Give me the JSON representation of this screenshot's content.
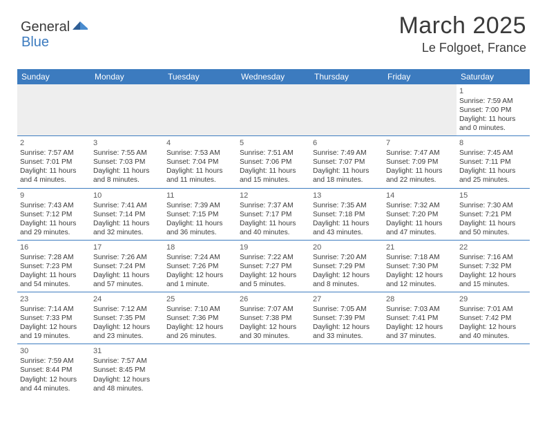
{
  "logo": {
    "general": "General",
    "blue": "Blue"
  },
  "title": "March 2025",
  "location": "Le Folgoet, France",
  "colors": {
    "header_bg": "#3c7bbf",
    "border": "#3c7bbf",
    "blank_bg": "#eeeeee",
    "text": "#3a3a3a",
    "logo_blue": "#3c7bbf"
  },
  "weekdays": [
    "Sunday",
    "Monday",
    "Tuesday",
    "Wednesday",
    "Thursday",
    "Friday",
    "Saturday"
  ],
  "weeks": [
    [
      {
        "blank": true
      },
      {
        "blank": true
      },
      {
        "blank": true
      },
      {
        "blank": true
      },
      {
        "blank": true
      },
      {
        "blank": true
      },
      {
        "num": "1",
        "sunrise": "Sunrise: 7:59 AM",
        "sunset": "Sunset: 7:00 PM",
        "day1": "Daylight: 11 hours",
        "day2": "and 0 minutes."
      }
    ],
    [
      {
        "num": "2",
        "sunrise": "Sunrise: 7:57 AM",
        "sunset": "Sunset: 7:01 PM",
        "day1": "Daylight: 11 hours",
        "day2": "and 4 minutes."
      },
      {
        "num": "3",
        "sunrise": "Sunrise: 7:55 AM",
        "sunset": "Sunset: 7:03 PM",
        "day1": "Daylight: 11 hours",
        "day2": "and 8 minutes."
      },
      {
        "num": "4",
        "sunrise": "Sunrise: 7:53 AM",
        "sunset": "Sunset: 7:04 PM",
        "day1": "Daylight: 11 hours",
        "day2": "and 11 minutes."
      },
      {
        "num": "5",
        "sunrise": "Sunrise: 7:51 AM",
        "sunset": "Sunset: 7:06 PM",
        "day1": "Daylight: 11 hours",
        "day2": "and 15 minutes."
      },
      {
        "num": "6",
        "sunrise": "Sunrise: 7:49 AM",
        "sunset": "Sunset: 7:07 PM",
        "day1": "Daylight: 11 hours",
        "day2": "and 18 minutes."
      },
      {
        "num": "7",
        "sunrise": "Sunrise: 7:47 AM",
        "sunset": "Sunset: 7:09 PM",
        "day1": "Daylight: 11 hours",
        "day2": "and 22 minutes."
      },
      {
        "num": "8",
        "sunrise": "Sunrise: 7:45 AM",
        "sunset": "Sunset: 7:11 PM",
        "day1": "Daylight: 11 hours",
        "day2": "and 25 minutes."
      }
    ],
    [
      {
        "num": "9",
        "sunrise": "Sunrise: 7:43 AM",
        "sunset": "Sunset: 7:12 PM",
        "day1": "Daylight: 11 hours",
        "day2": "and 29 minutes."
      },
      {
        "num": "10",
        "sunrise": "Sunrise: 7:41 AM",
        "sunset": "Sunset: 7:14 PM",
        "day1": "Daylight: 11 hours",
        "day2": "and 32 minutes."
      },
      {
        "num": "11",
        "sunrise": "Sunrise: 7:39 AM",
        "sunset": "Sunset: 7:15 PM",
        "day1": "Daylight: 11 hours",
        "day2": "and 36 minutes."
      },
      {
        "num": "12",
        "sunrise": "Sunrise: 7:37 AM",
        "sunset": "Sunset: 7:17 PM",
        "day1": "Daylight: 11 hours",
        "day2": "and 40 minutes."
      },
      {
        "num": "13",
        "sunrise": "Sunrise: 7:35 AM",
        "sunset": "Sunset: 7:18 PM",
        "day1": "Daylight: 11 hours",
        "day2": "and 43 minutes."
      },
      {
        "num": "14",
        "sunrise": "Sunrise: 7:32 AM",
        "sunset": "Sunset: 7:20 PM",
        "day1": "Daylight: 11 hours",
        "day2": "and 47 minutes."
      },
      {
        "num": "15",
        "sunrise": "Sunrise: 7:30 AM",
        "sunset": "Sunset: 7:21 PM",
        "day1": "Daylight: 11 hours",
        "day2": "and 50 minutes."
      }
    ],
    [
      {
        "num": "16",
        "sunrise": "Sunrise: 7:28 AM",
        "sunset": "Sunset: 7:23 PM",
        "day1": "Daylight: 11 hours",
        "day2": "and 54 minutes."
      },
      {
        "num": "17",
        "sunrise": "Sunrise: 7:26 AM",
        "sunset": "Sunset: 7:24 PM",
        "day1": "Daylight: 11 hours",
        "day2": "and 57 minutes."
      },
      {
        "num": "18",
        "sunrise": "Sunrise: 7:24 AM",
        "sunset": "Sunset: 7:26 PM",
        "day1": "Daylight: 12 hours",
        "day2": "and 1 minute."
      },
      {
        "num": "19",
        "sunrise": "Sunrise: 7:22 AM",
        "sunset": "Sunset: 7:27 PM",
        "day1": "Daylight: 12 hours",
        "day2": "and 5 minutes."
      },
      {
        "num": "20",
        "sunrise": "Sunrise: 7:20 AM",
        "sunset": "Sunset: 7:29 PM",
        "day1": "Daylight: 12 hours",
        "day2": "and 8 minutes."
      },
      {
        "num": "21",
        "sunrise": "Sunrise: 7:18 AM",
        "sunset": "Sunset: 7:30 PM",
        "day1": "Daylight: 12 hours",
        "day2": "and 12 minutes."
      },
      {
        "num": "22",
        "sunrise": "Sunrise: 7:16 AM",
        "sunset": "Sunset: 7:32 PM",
        "day1": "Daylight: 12 hours",
        "day2": "and 15 minutes."
      }
    ],
    [
      {
        "num": "23",
        "sunrise": "Sunrise: 7:14 AM",
        "sunset": "Sunset: 7:33 PM",
        "day1": "Daylight: 12 hours",
        "day2": "and 19 minutes."
      },
      {
        "num": "24",
        "sunrise": "Sunrise: 7:12 AM",
        "sunset": "Sunset: 7:35 PM",
        "day1": "Daylight: 12 hours",
        "day2": "and 23 minutes."
      },
      {
        "num": "25",
        "sunrise": "Sunrise: 7:10 AM",
        "sunset": "Sunset: 7:36 PM",
        "day1": "Daylight: 12 hours",
        "day2": "and 26 minutes."
      },
      {
        "num": "26",
        "sunrise": "Sunrise: 7:07 AM",
        "sunset": "Sunset: 7:38 PM",
        "day1": "Daylight: 12 hours",
        "day2": "and 30 minutes."
      },
      {
        "num": "27",
        "sunrise": "Sunrise: 7:05 AM",
        "sunset": "Sunset: 7:39 PM",
        "day1": "Daylight: 12 hours",
        "day2": "and 33 minutes."
      },
      {
        "num": "28",
        "sunrise": "Sunrise: 7:03 AM",
        "sunset": "Sunset: 7:41 PM",
        "day1": "Daylight: 12 hours",
        "day2": "and 37 minutes."
      },
      {
        "num": "29",
        "sunrise": "Sunrise: 7:01 AM",
        "sunset": "Sunset: 7:42 PM",
        "day1": "Daylight: 12 hours",
        "day2": "and 40 minutes."
      }
    ],
    [
      {
        "num": "30",
        "sunrise": "Sunrise: 7:59 AM",
        "sunset": "Sunset: 8:44 PM",
        "day1": "Daylight: 12 hours",
        "day2": "and 44 minutes."
      },
      {
        "num": "31",
        "sunrise": "Sunrise: 7:57 AM",
        "sunset": "Sunset: 8:45 PM",
        "day1": "Daylight: 12 hours",
        "day2": "and 48 minutes."
      },
      {
        "blank": true
      },
      {
        "blank": true
      },
      {
        "blank": true
      },
      {
        "blank": true
      },
      {
        "blank": true
      }
    ]
  ]
}
